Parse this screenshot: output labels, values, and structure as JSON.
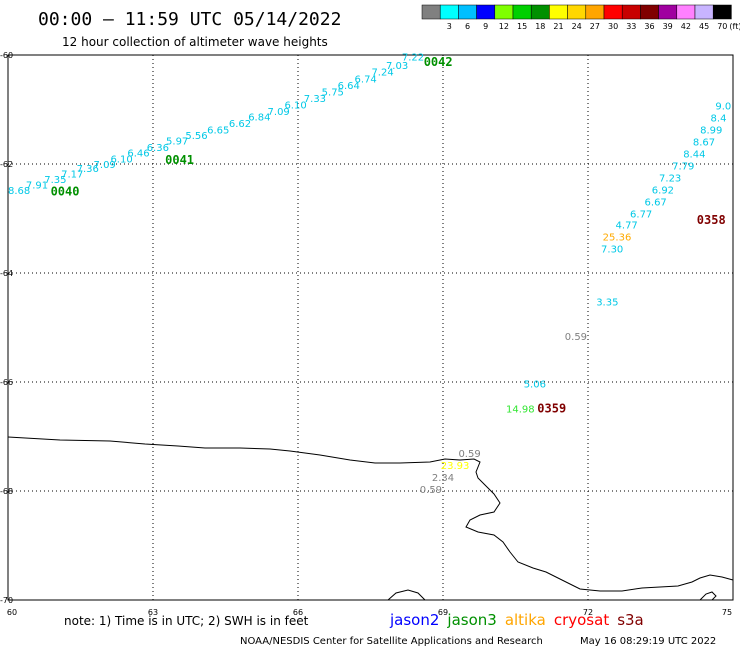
{
  "title": "00:00 – 11:59 UTC 05/14/2022",
  "subtitle": "12 hour collection of altimeter wave heights",
  "colorbar": {
    "unit": "(ft)",
    "bins": [
      {
        "label": "",
        "color": "#808080"
      },
      {
        "label": "3",
        "color": "#00ffff"
      },
      {
        "label": "6",
        "color": "#00bfff"
      },
      {
        "label": "9",
        "color": "#0000ff"
      },
      {
        "label": "12",
        "color": "#7fff00"
      },
      {
        "label": "15",
        "color": "#00d000"
      },
      {
        "label": "18",
        "color": "#009000"
      },
      {
        "label": "21",
        "color": "#ffff00"
      },
      {
        "label": "24",
        "color": "#ffd700"
      },
      {
        "label": "27",
        "color": "#ffa500"
      },
      {
        "label": "30",
        "color": "#ff0000"
      },
      {
        "label": "33",
        "color": "#c80000"
      },
      {
        "label": "36",
        "color": "#800000"
      },
      {
        "label": "39",
        "color": "#a000a0"
      },
      {
        "label": "42",
        "color": "#ff80ff"
      },
      {
        "label": "45",
        "color": "#c8b4ff"
      },
      {
        "label": "70",
        "color": "#000000"
      }
    ]
  },
  "axes": {
    "lon_ticks": [
      {
        "label": "60",
        "lon": 60
      },
      {
        "label": "63",
        "lon": 63
      },
      {
        "label": "66",
        "lon": 66
      },
      {
        "label": "69",
        "lon": 69
      },
      {
        "label": "72",
        "lon": 72
      },
      {
        "label": "75",
        "lon": 75
      }
    ],
    "lat_ticks": [
      {
        "label": "-60",
        "lat": -60
      },
      {
        "label": "-62",
        "lat": -62
      },
      {
        "label": "-64",
        "lat": -64
      },
      {
        "label": "-66",
        "lat": -66
      },
      {
        "label": "-68",
        "lat": -68
      },
      {
        "label": "-70",
        "lat": -70
      }
    ]
  },
  "colors": {
    "cyan": "#00c8e6",
    "green": "#009000",
    "gray": "#808080",
    "yellow": "#ffff00",
    "lightgreen": "#32e632",
    "orange": "#ffaa00",
    "darkred": "#800000"
  },
  "observations": [
    {
      "t": "8.68",
      "lon": 60.23,
      "lat": -62.55,
      "c": "cyan"
    },
    {
      "t": "7.91",
      "lon": 60.6,
      "lat": -62.45,
      "c": "cyan"
    },
    {
      "t": "7.35",
      "lon": 60.98,
      "lat": -62.35,
      "c": "cyan"
    },
    {
      "t": "7.17",
      "lon": 61.33,
      "lat": -62.25,
      "c": "cyan"
    },
    {
      "t": "7.36",
      "lon": 61.65,
      "lat": -62.15,
      "c": "cyan"
    },
    {
      "t": "7.09",
      "lon": 62.0,
      "lat": -62.07,
      "c": "cyan"
    },
    {
      "t": "6.10",
      "lon": 62.35,
      "lat": -61.97,
      "c": "cyan"
    },
    {
      "t": "6.46",
      "lon": 62.7,
      "lat": -61.86,
      "c": "cyan"
    },
    {
      "t": "6.36",
      "lon": 63.1,
      "lat": -61.76,
      "c": "cyan"
    },
    {
      "t": "5.97",
      "lon": 63.5,
      "lat": -61.64,
      "c": "cyan"
    },
    {
      "t": "5.56",
      "lon": 63.9,
      "lat": -61.54,
      "c": "cyan"
    },
    {
      "t": "6.65",
      "lon": 64.35,
      "lat": -61.44,
      "c": "cyan"
    },
    {
      "t": "6.62",
      "lon": 64.8,
      "lat": -61.32,
      "c": "cyan"
    },
    {
      "t": "6.84",
      "lon": 65.2,
      "lat": -61.2,
      "c": "cyan"
    },
    {
      "t": "7.09",
      "lon": 65.6,
      "lat": -61.1,
      "c": "cyan"
    },
    {
      "t": "6.10",
      "lon": 65.95,
      "lat": -60.98,
      "c": "cyan"
    },
    {
      "t": "7.33",
      "lon": 66.35,
      "lat": -60.86,
      "c": "cyan"
    },
    {
      "t": "5.75",
      "lon": 66.72,
      "lat": -60.74,
      "c": "cyan"
    },
    {
      "t": "6.64",
      "lon": 67.05,
      "lat": -60.62,
      "c": "cyan"
    },
    {
      "t": "6.74",
      "lon": 67.4,
      "lat": -60.5,
      "c": "cyan"
    },
    {
      "t": "7.24",
      "lon": 67.75,
      "lat": -60.38,
      "c": "cyan"
    },
    {
      "t": "7.03",
      "lon": 68.05,
      "lat": -60.26,
      "c": "cyan"
    },
    {
      "t": "7.22",
      "lon": 68.38,
      "lat": -60.1,
      "c": "cyan"
    },
    {
      "t": "9.0",
      "lon": 74.8,
      "lat": -61.0,
      "c": "cyan"
    },
    {
      "t": "8.4",
      "lon": 74.7,
      "lat": -61.22,
      "c": "cyan"
    },
    {
      "t": "8.99",
      "lon": 74.55,
      "lat": -61.44,
      "c": "cyan"
    },
    {
      "t": "8.67",
      "lon": 74.4,
      "lat": -61.66,
      "c": "cyan"
    },
    {
      "t": "8.44",
      "lon": 74.2,
      "lat": -61.88,
      "c": "cyan"
    },
    {
      "t": "7.79",
      "lon": 73.97,
      "lat": -62.1,
      "c": "cyan"
    },
    {
      "t": "7.23",
      "lon": 73.7,
      "lat": -62.32,
      "c": "cyan"
    },
    {
      "t": "6.92",
      "lon": 73.55,
      "lat": -62.54,
      "c": "cyan"
    },
    {
      "t": "6.67",
      "lon": 73.4,
      "lat": -62.76,
      "c": "cyan"
    },
    {
      "t": "6.77",
      "lon": 73.1,
      "lat": -62.98,
      "c": "cyan"
    },
    {
      "t": "4.77",
      "lon": 72.8,
      "lat": -63.18,
      "c": "cyan"
    },
    {
      "t": "25.36",
      "lon": 72.6,
      "lat": -63.4,
      "c": "orange"
    },
    {
      "t": "7.30",
      "lon": 72.5,
      "lat": -63.62,
      "c": "cyan"
    },
    {
      "t": "3.35",
      "lon": 72.4,
      "lat": -64.6,
      "c": "cyan"
    },
    {
      "t": "0.59",
      "lon": 71.75,
      "lat": -65.23,
      "c": "gray"
    },
    {
      "t": "5.06",
      "lon": 70.9,
      "lat": -66.1,
      "c": "cyan"
    },
    {
      "t": "14.98",
      "lon": 70.6,
      "lat": -66.56,
      "c": "lightgreen"
    },
    {
      "t": "0.59",
      "lon": 69.55,
      "lat": -67.38,
      "c": "gray"
    },
    {
      "t": "23.93",
      "lon": 69.25,
      "lat": -67.6,
      "c": "yellow"
    },
    {
      "t": "2.34",
      "lon": 69.0,
      "lat": -67.82,
      "c": "gray"
    },
    {
      "t": "0.59",
      "lon": 68.75,
      "lat": -68.04,
      "c": "gray"
    }
  ],
  "time_labels": [
    {
      "t": "0040",
      "lon": 61.18,
      "lat": -62.58,
      "c": "green"
    },
    {
      "t": "0041",
      "lon": 63.55,
      "lat": -62.0,
      "c": "green"
    },
    {
      "t": "0042",
      "lon": 68.9,
      "lat": -60.2,
      "c": "green"
    },
    {
      "t": "0358",
      "lon": 74.55,
      "lat": -63.1,
      "c": "darkred"
    },
    {
      "t": "0359",
      "lon": 71.25,
      "lat": -66.56,
      "c": "darkred"
    }
  ],
  "note": "note:  1) Time is in UTC;  2) SWH is in feet",
  "satellites": [
    {
      "name": "jason2",
      "color": "#0000ff"
    },
    {
      "name": "jason3",
      "color": "#009000"
    },
    {
      "name": "altika",
      "color": "#ffa500"
    },
    {
      "name": "cryosat",
      "color": "#ff0000"
    },
    {
      "name": "s3a",
      "color": "#800000"
    }
  ],
  "credit": "NOAA/NESDIS Center for Satellite Applications and Research",
  "generated": "May 16 08:29:19 UTC 2022"
}
